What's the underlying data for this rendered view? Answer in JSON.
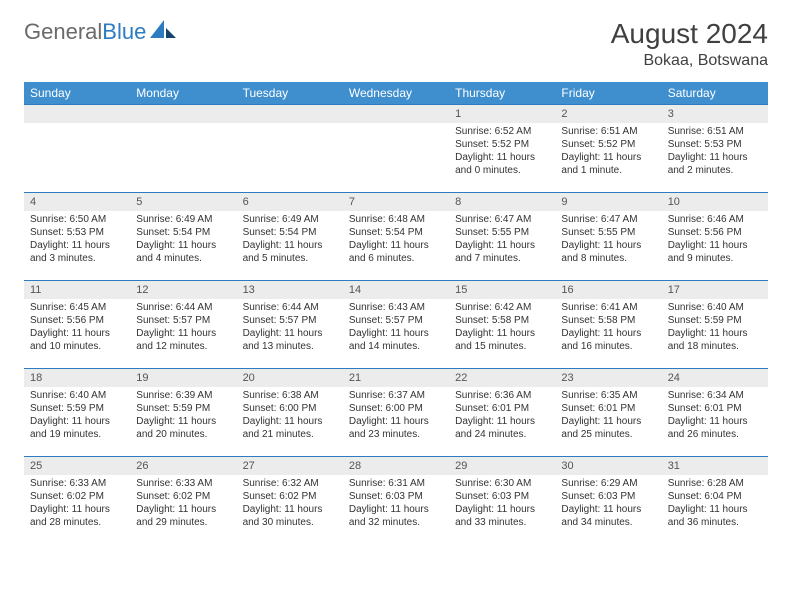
{
  "brand": {
    "part1": "General",
    "part2": "Blue"
  },
  "title": "August 2024",
  "location": "Bokaa, Botswana",
  "colors": {
    "header_bg": "#3f8fcf",
    "header_text": "#ffffff",
    "daynum_bg": "#ececec",
    "border": "#2d7bc0",
    "body_text": "#333333",
    "title_text": "#404040"
  },
  "dayHeaders": [
    "Sunday",
    "Monday",
    "Tuesday",
    "Wednesday",
    "Thursday",
    "Friday",
    "Saturday"
  ],
  "weeks": [
    [
      {
        "n": "",
        "sr": "",
        "ss": "",
        "dl": ""
      },
      {
        "n": "",
        "sr": "",
        "ss": "",
        "dl": ""
      },
      {
        "n": "",
        "sr": "",
        "ss": "",
        "dl": ""
      },
      {
        "n": "",
        "sr": "",
        "ss": "",
        "dl": ""
      },
      {
        "n": "1",
        "sr": "Sunrise: 6:52 AM",
        "ss": "Sunset: 5:52 PM",
        "dl": "Daylight: 11 hours and 0 minutes."
      },
      {
        "n": "2",
        "sr": "Sunrise: 6:51 AM",
        "ss": "Sunset: 5:52 PM",
        "dl": "Daylight: 11 hours and 1 minute."
      },
      {
        "n": "3",
        "sr": "Sunrise: 6:51 AM",
        "ss": "Sunset: 5:53 PM",
        "dl": "Daylight: 11 hours and 2 minutes."
      }
    ],
    [
      {
        "n": "4",
        "sr": "Sunrise: 6:50 AM",
        "ss": "Sunset: 5:53 PM",
        "dl": "Daylight: 11 hours and 3 minutes."
      },
      {
        "n": "5",
        "sr": "Sunrise: 6:49 AM",
        "ss": "Sunset: 5:54 PM",
        "dl": "Daylight: 11 hours and 4 minutes."
      },
      {
        "n": "6",
        "sr": "Sunrise: 6:49 AM",
        "ss": "Sunset: 5:54 PM",
        "dl": "Daylight: 11 hours and 5 minutes."
      },
      {
        "n": "7",
        "sr": "Sunrise: 6:48 AM",
        "ss": "Sunset: 5:54 PM",
        "dl": "Daylight: 11 hours and 6 minutes."
      },
      {
        "n": "8",
        "sr": "Sunrise: 6:47 AM",
        "ss": "Sunset: 5:55 PM",
        "dl": "Daylight: 11 hours and 7 minutes."
      },
      {
        "n": "9",
        "sr": "Sunrise: 6:47 AM",
        "ss": "Sunset: 5:55 PM",
        "dl": "Daylight: 11 hours and 8 minutes."
      },
      {
        "n": "10",
        "sr": "Sunrise: 6:46 AM",
        "ss": "Sunset: 5:56 PM",
        "dl": "Daylight: 11 hours and 9 minutes."
      }
    ],
    [
      {
        "n": "11",
        "sr": "Sunrise: 6:45 AM",
        "ss": "Sunset: 5:56 PM",
        "dl": "Daylight: 11 hours and 10 minutes."
      },
      {
        "n": "12",
        "sr": "Sunrise: 6:44 AM",
        "ss": "Sunset: 5:57 PM",
        "dl": "Daylight: 11 hours and 12 minutes."
      },
      {
        "n": "13",
        "sr": "Sunrise: 6:44 AM",
        "ss": "Sunset: 5:57 PM",
        "dl": "Daylight: 11 hours and 13 minutes."
      },
      {
        "n": "14",
        "sr": "Sunrise: 6:43 AM",
        "ss": "Sunset: 5:57 PM",
        "dl": "Daylight: 11 hours and 14 minutes."
      },
      {
        "n": "15",
        "sr": "Sunrise: 6:42 AM",
        "ss": "Sunset: 5:58 PM",
        "dl": "Daylight: 11 hours and 15 minutes."
      },
      {
        "n": "16",
        "sr": "Sunrise: 6:41 AM",
        "ss": "Sunset: 5:58 PM",
        "dl": "Daylight: 11 hours and 16 minutes."
      },
      {
        "n": "17",
        "sr": "Sunrise: 6:40 AM",
        "ss": "Sunset: 5:59 PM",
        "dl": "Daylight: 11 hours and 18 minutes."
      }
    ],
    [
      {
        "n": "18",
        "sr": "Sunrise: 6:40 AM",
        "ss": "Sunset: 5:59 PM",
        "dl": "Daylight: 11 hours and 19 minutes."
      },
      {
        "n": "19",
        "sr": "Sunrise: 6:39 AM",
        "ss": "Sunset: 5:59 PM",
        "dl": "Daylight: 11 hours and 20 minutes."
      },
      {
        "n": "20",
        "sr": "Sunrise: 6:38 AM",
        "ss": "Sunset: 6:00 PM",
        "dl": "Daylight: 11 hours and 21 minutes."
      },
      {
        "n": "21",
        "sr": "Sunrise: 6:37 AM",
        "ss": "Sunset: 6:00 PM",
        "dl": "Daylight: 11 hours and 23 minutes."
      },
      {
        "n": "22",
        "sr": "Sunrise: 6:36 AM",
        "ss": "Sunset: 6:01 PM",
        "dl": "Daylight: 11 hours and 24 minutes."
      },
      {
        "n": "23",
        "sr": "Sunrise: 6:35 AM",
        "ss": "Sunset: 6:01 PM",
        "dl": "Daylight: 11 hours and 25 minutes."
      },
      {
        "n": "24",
        "sr": "Sunrise: 6:34 AM",
        "ss": "Sunset: 6:01 PM",
        "dl": "Daylight: 11 hours and 26 minutes."
      }
    ],
    [
      {
        "n": "25",
        "sr": "Sunrise: 6:33 AM",
        "ss": "Sunset: 6:02 PM",
        "dl": "Daylight: 11 hours and 28 minutes."
      },
      {
        "n": "26",
        "sr": "Sunrise: 6:33 AM",
        "ss": "Sunset: 6:02 PM",
        "dl": "Daylight: 11 hours and 29 minutes."
      },
      {
        "n": "27",
        "sr": "Sunrise: 6:32 AM",
        "ss": "Sunset: 6:02 PM",
        "dl": "Daylight: 11 hours and 30 minutes."
      },
      {
        "n": "28",
        "sr": "Sunrise: 6:31 AM",
        "ss": "Sunset: 6:03 PM",
        "dl": "Daylight: 11 hours and 32 minutes."
      },
      {
        "n": "29",
        "sr": "Sunrise: 6:30 AM",
        "ss": "Sunset: 6:03 PM",
        "dl": "Daylight: 11 hours and 33 minutes."
      },
      {
        "n": "30",
        "sr": "Sunrise: 6:29 AM",
        "ss": "Sunset: 6:03 PM",
        "dl": "Daylight: 11 hours and 34 minutes."
      },
      {
        "n": "31",
        "sr": "Sunrise: 6:28 AM",
        "ss": "Sunset: 6:04 PM",
        "dl": "Daylight: 11 hours and 36 minutes."
      }
    ]
  ]
}
